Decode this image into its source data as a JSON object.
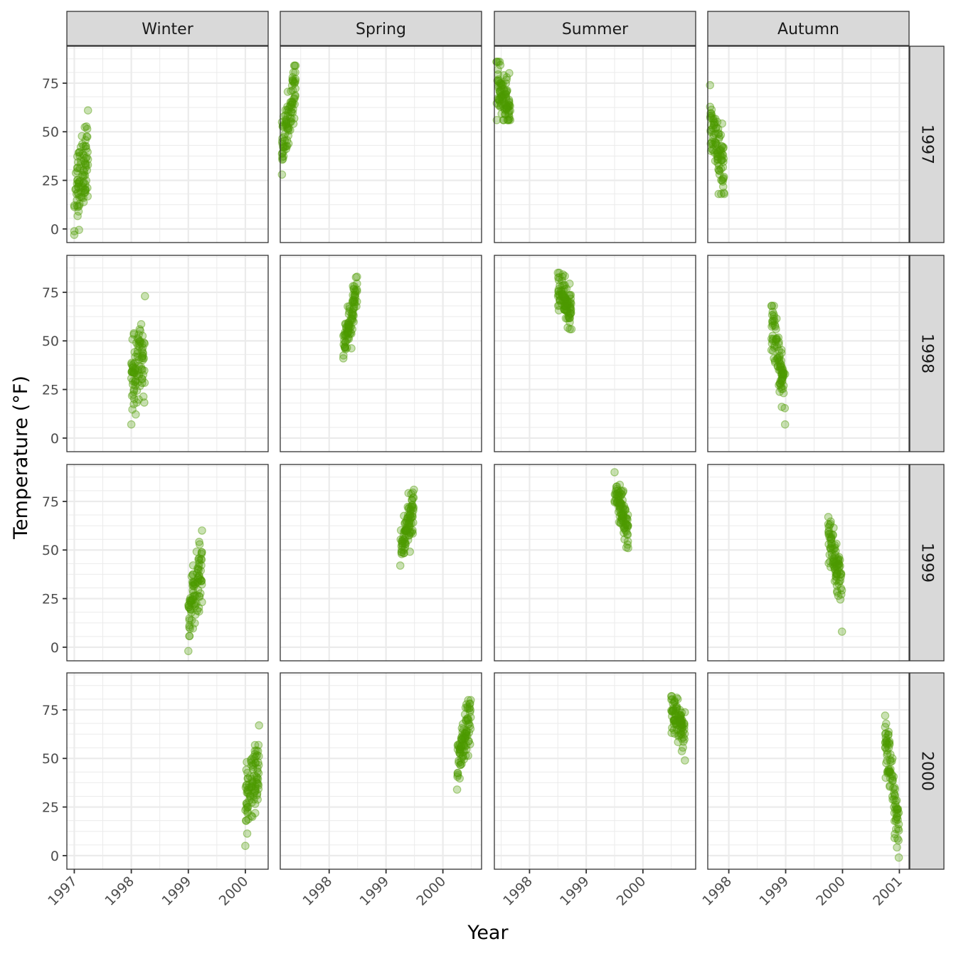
{
  "chart_data": {
    "type": "scatter",
    "title": "",
    "xlabel": "Year",
    "ylabel": "Temperature (°F)",
    "facet_cols": [
      "Winter",
      "Spring",
      "Summer",
      "Autumn"
    ],
    "facet_rows": [
      "1997",
      "1998",
      "1999",
      "2000"
    ],
    "ylim": [
      -7,
      94
    ],
    "yticks": [
      0,
      25,
      50,
      75
    ],
    "point_color": "#4d9a00",
    "point_alpha": 0.35,
    "grid": true,
    "columns": [
      {
        "season": "Winter",
        "xlim": [
          1996.87,
          2000.4
        ],
        "xticks": [
          "1997",
          "1998",
          "1999",
          "2000"
        ],
        "xtick_values": [
          1997,
          1998,
          1999,
          2000
        ]
      },
      {
        "season": "Spring",
        "xlim": [
          1997.14,
          2000.68
        ],
        "xticks": [
          "1998",
          "1999",
          "2000"
        ],
        "xtick_values": [
          1998,
          1999,
          2000
        ]
      },
      {
        "season": "Summer",
        "xlim": [
          1997.38,
          2000.93
        ],
        "xticks": [
          "1998",
          "1999",
          "2000"
        ],
        "xtick_values": [
          1998,
          1999,
          2000
        ]
      },
      {
        "season": "Autumn",
        "xlim": [
          1997.63,
          2001.17
        ],
        "xticks": [
          "1998",
          "1999",
          "2000",
          "2001"
        ],
        "xtick_values": [
          1998,
          1999,
          2000,
          2001
        ]
      }
    ],
    "panels": [
      {
        "row": "1997",
        "col": "Winter",
        "x_start": 1997.0,
        "x_end": 1997.24,
        "temp_start": 15,
        "temp_end": 40,
        "temp_min": -3,
        "temp_max": 61,
        "spread": 10
      },
      {
        "row": "1997",
        "col": "Spring",
        "x_start": 1997.17,
        "x_end": 1997.41,
        "temp_start": 40,
        "temp_end": 76,
        "temp_min": 28,
        "temp_max": 84,
        "spread": 7
      },
      {
        "row": "1997",
        "col": "Summer",
        "x_start": 1997.42,
        "x_end": 1997.66,
        "temp_start": 74,
        "temp_end": 62,
        "temp_min": 56,
        "temp_max": 86,
        "spread": 6
      },
      {
        "row": "1997",
        "col": "Autumn",
        "x_start": 1997.67,
        "x_end": 1997.92,
        "temp_start": 55,
        "temp_end": 28,
        "temp_min": 18,
        "temp_max": 74,
        "spread": 8
      },
      {
        "row": "1998",
        "col": "Winter",
        "x_start": 1998.0,
        "x_end": 1998.24,
        "temp_start": 30,
        "temp_end": 42,
        "temp_min": 7,
        "temp_max": 73,
        "spread": 9
      },
      {
        "row": "1998",
        "col": "Spring",
        "x_start": 1998.25,
        "x_end": 1998.49,
        "temp_start": 45,
        "temp_end": 76,
        "temp_min": 41,
        "temp_max": 83,
        "spread": 6
      },
      {
        "row": "1998",
        "col": "Summer",
        "x_start": 1998.5,
        "x_end": 1998.74,
        "temp_start": 76,
        "temp_end": 66,
        "temp_min": 56,
        "temp_max": 85,
        "spread": 5
      },
      {
        "row": "1998",
        "col": "Autumn",
        "x_start": 1998.75,
        "x_end": 1998.99,
        "temp_start": 58,
        "temp_end": 25,
        "temp_min": 7,
        "temp_max": 68,
        "spread": 7
      },
      {
        "row": "1999",
        "col": "Winter",
        "x_start": 1999.0,
        "x_end": 1999.24,
        "temp_start": 18,
        "temp_end": 40,
        "temp_min": -2,
        "temp_max": 60,
        "spread": 8
      },
      {
        "row": "1999",
        "col": "Spring",
        "x_start": 1999.25,
        "x_end": 1999.49,
        "temp_start": 50,
        "temp_end": 73,
        "temp_min": 42,
        "temp_max": 81,
        "spread": 6
      },
      {
        "row": "1999",
        "col": "Summer",
        "x_start": 1999.5,
        "x_end": 1999.74,
        "temp_start": 80,
        "temp_end": 62,
        "temp_min": 51,
        "temp_max": 90,
        "spread": 5
      },
      {
        "row": "1999",
        "col": "Autumn",
        "x_start": 1999.75,
        "x_end": 1999.99,
        "temp_start": 57,
        "temp_end": 28,
        "temp_min": 8,
        "temp_max": 67,
        "spread": 7
      },
      {
        "row": "2000",
        "col": "Winter",
        "x_start": 2000.0,
        "x_end": 2000.24,
        "temp_start": 27,
        "temp_end": 45,
        "temp_min": 5,
        "temp_max": 67,
        "spread": 9
      },
      {
        "row": "2000",
        "col": "Spring",
        "x_start": 2000.25,
        "x_end": 2000.49,
        "temp_start": 47,
        "temp_end": 72,
        "temp_min": 34,
        "temp_max": 80,
        "spread": 6
      },
      {
        "row": "2000",
        "col": "Summer",
        "x_start": 2000.5,
        "x_end": 2000.74,
        "temp_start": 75,
        "temp_end": 63,
        "temp_min": 49,
        "temp_max": 82,
        "spread": 5
      },
      {
        "row": "2000",
        "col": "Autumn",
        "x_start": 2000.75,
        "x_end": 2000.99,
        "temp_start": 62,
        "temp_end": 12,
        "temp_min": -1,
        "temp_max": 72,
        "spread": 7
      }
    ]
  }
}
